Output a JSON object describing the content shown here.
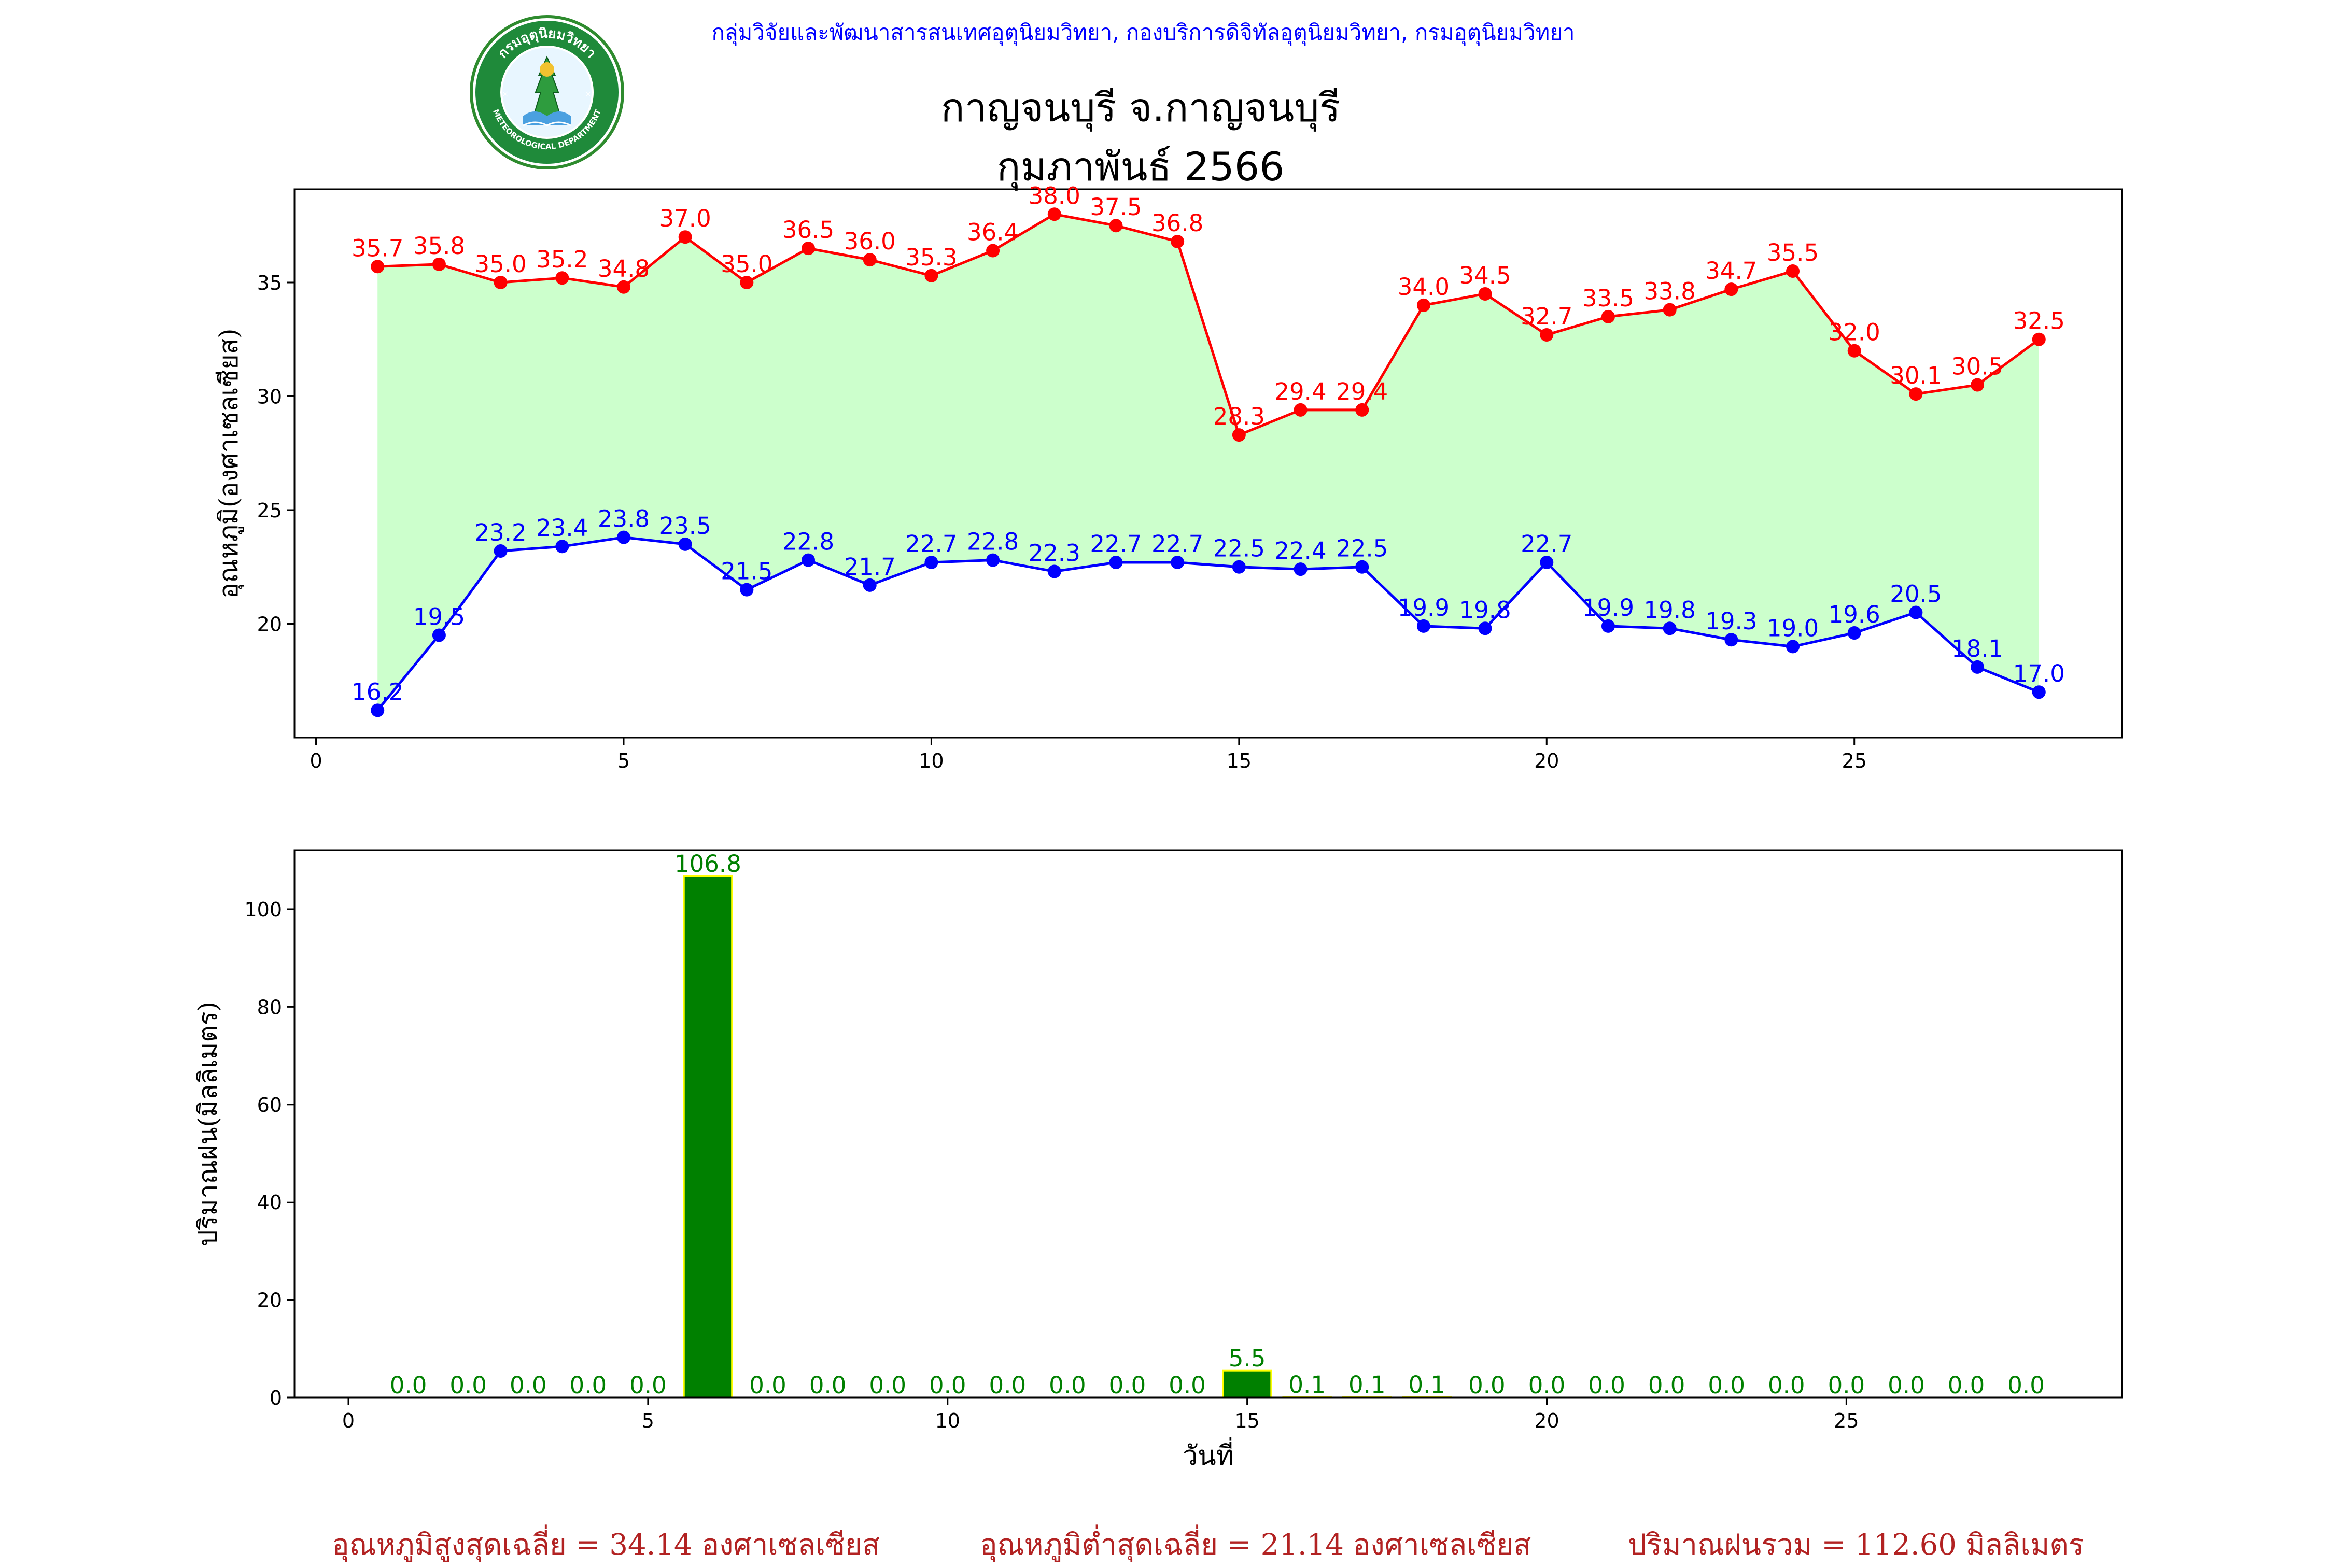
{
  "header": {
    "source": "กลุ่มวิจัยและพัฒนาสารสนเทศอุตุนิยมวิทยา, กองบริการดิจิทัลอุตุนิยมวิทยา, กรมอุตุนิยมวิทยา",
    "title_line1": "กาญจนบุรี จ.กาญจนบุรี",
    "title_line2": "กุมภาพันธ์ 2566",
    "logo_text_top": "กรมอุตุนิยมวิทยา",
    "logo_text_bottom": "METEOROLOGICAL DEPARTMENT"
  },
  "colors": {
    "max_temp": "#ff0000",
    "min_temp": "#0000ff",
    "range_fill": "#ccffcc",
    "rain_bar": "#008000",
    "rain_bar_edge": "#ffff00",
    "rain_label": "#008000",
    "summary": "#b22222"
  },
  "chart_data": [
    {
      "type": "line",
      "ylabel": "อุณหภูมิ(องศาเซลเซียส)",
      "xlabel": "",
      "xlim": [
        -0.35,
        29.35
      ],
      "ylim": [
        15.0,
        39.1
      ],
      "xticks": [
        0,
        5,
        10,
        15,
        20,
        25
      ],
      "yticks": [
        20,
        25,
        30,
        35
      ],
      "x": [
        1,
        2,
        3,
        4,
        5,
        6,
        7,
        8,
        9,
        10,
        11,
        12,
        13,
        14,
        15,
        16,
        17,
        18,
        19,
        20,
        21,
        22,
        23,
        24,
        25,
        26,
        27,
        28
      ],
      "fill_between": true,
      "series": [
        {
          "key": "max",
          "values": [
            35.7,
            35.8,
            35.0,
            35.2,
            34.8,
            37.0,
            35.0,
            36.5,
            36.0,
            35.3,
            36.4,
            38.0,
            37.5,
            36.8,
            28.3,
            29.4,
            29.4,
            34.0,
            34.5,
            32.7,
            33.5,
            33.8,
            34.7,
            35.5,
            32.0,
            30.1,
            30.5,
            32.5
          ]
        },
        {
          "key": "min",
          "values": [
            16.2,
            19.5,
            23.2,
            23.4,
            23.8,
            23.5,
            21.5,
            22.8,
            21.7,
            22.7,
            22.8,
            22.3,
            22.7,
            22.7,
            22.5,
            22.4,
            22.5,
            19.9,
            19.8,
            22.7,
            19.9,
            19.8,
            19.3,
            19.0,
            19.6,
            20.5,
            18.1,
            17.0
          ]
        }
      ]
    },
    {
      "type": "bar",
      "ylabel": "ปริมาณฝน(มิลลิเมตร)",
      "xlabel": "วันที่",
      "xlim": [
        -0.9,
        29.6
      ],
      "ylim": [
        0,
        112.1
      ],
      "xticks": [
        0,
        5,
        10,
        15,
        20,
        25
      ],
      "yticks": [
        0,
        20,
        40,
        60,
        80,
        100
      ],
      "x": [
        1,
        2,
        3,
        4,
        5,
        6,
        7,
        8,
        9,
        10,
        11,
        12,
        13,
        14,
        15,
        16,
        17,
        18,
        19,
        20,
        21,
        22,
        23,
        24,
        25,
        26,
        27,
        28
      ],
      "values": [
        0.0,
        0.0,
        0.0,
        0.0,
        0.0,
        106.8,
        0.0,
        0.0,
        0.0,
        0.0,
        0.0,
        0.0,
        0.0,
        0.0,
        5.5,
        0.1,
        0.1,
        0.1,
        0.0,
        0.0,
        0.0,
        0.0,
        0.0,
        0.0,
        0.0,
        0.0,
        0.0,
        0.0
      ]
    }
  ],
  "summary": {
    "avg_max": "อุณหภูมิสูงสุดเฉลี่ย = 34.14 องศาเซลเซียส",
    "avg_min": "อุณหภูมิต่ำสุดเฉลี่ย = 21.14 องศาเซลเซียส",
    "total_rain": "ปริมาณฝนรวม = 112.60 มิลลิเมตร"
  }
}
